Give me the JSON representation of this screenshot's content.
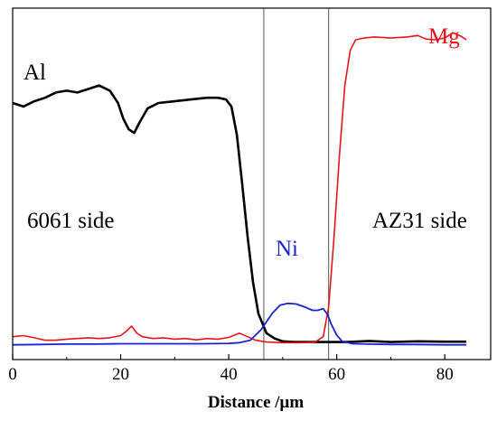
{
  "chart_data": {
    "type": "line",
    "xlabel": "Distance /μm",
    "ylabel": "",
    "xlim": [
      0,
      88.5
    ],
    "ylim": [
      0,
      1
    ],
    "x_ticks": [
      0,
      20,
      40,
      60,
      80
    ],
    "x_tick_labels": [
      "0",
      "20",
      "40",
      "60",
      "80"
    ],
    "y_ticks_shown": false,
    "grid": false,
    "legend": "none",
    "vlines": [
      46.5,
      58.5
    ],
    "annotations": [
      {
        "key": "al",
        "text": "Al",
        "color": "#000000"
      },
      {
        "key": "mg",
        "text": "Mg",
        "color": "#e8141a"
      },
      {
        "key": "ni",
        "text": "Ni",
        "color": "#1a23d4"
      },
      {
        "key": "left_side",
        "text": "6061 side",
        "color": "#000000"
      },
      {
        "key": "right_side",
        "text": "AZ31 side",
        "color": "#000000"
      }
    ],
    "series": [
      {
        "color": "#000000",
        "points": [
          [
            0,
            0.73
          ],
          [
            2,
            0.72
          ],
          [
            4,
            0.735
          ],
          [
            6,
            0.745
          ],
          [
            8,
            0.76
          ],
          [
            10,
            0.765
          ],
          [
            12,
            0.76
          ],
          [
            14,
            0.77
          ],
          [
            16,
            0.78
          ],
          [
            18,
            0.765
          ],
          [
            19.5,
            0.73
          ],
          [
            20.5,
            0.685
          ],
          [
            21.5,
            0.655
          ],
          [
            22.5,
            0.645
          ],
          [
            23.5,
            0.675
          ],
          [
            25,
            0.715
          ],
          [
            27,
            0.73
          ],
          [
            30,
            0.735
          ],
          [
            33,
            0.74
          ],
          [
            36,
            0.745
          ],
          [
            38,
            0.745
          ],
          [
            39.5,
            0.74
          ],
          [
            40.5,
            0.72
          ],
          [
            41.5,
            0.64
          ],
          [
            42.5,
            0.5
          ],
          [
            43.5,
            0.35
          ],
          [
            44.5,
            0.22
          ],
          [
            45.5,
            0.13
          ],
          [
            47,
            0.075
          ],
          [
            48.5,
            0.06
          ],
          [
            50,
            0.052
          ],
          [
            52,
            0.05
          ],
          [
            55,
            0.05
          ],
          [
            58,
            0.05
          ],
          [
            62,
            0.05
          ],
          [
            66,
            0.053
          ],
          [
            70,
            0.05
          ],
          [
            75,
            0.052
          ],
          [
            80,
            0.051
          ],
          [
            84,
            0.051
          ]
        ]
      },
      {
        "color": "#e8141a",
        "points": [
          [
            0,
            0.065
          ],
          [
            2,
            0.068
          ],
          [
            4,
            0.062
          ],
          [
            6,
            0.055
          ],
          [
            8,
            0.055
          ],
          [
            10,
            0.058
          ],
          [
            12,
            0.06
          ],
          [
            14,
            0.062
          ],
          [
            16,
            0.06
          ],
          [
            18,
            0.062
          ],
          [
            20,
            0.068
          ],
          [
            21,
            0.08
          ],
          [
            22,
            0.095
          ],
          [
            23,
            0.075
          ],
          [
            24,
            0.065
          ],
          [
            26,
            0.06
          ],
          [
            28,
            0.062
          ],
          [
            30,
            0.058
          ],
          [
            32,
            0.06
          ],
          [
            34,
            0.056
          ],
          [
            36,
            0.06
          ],
          [
            38,
            0.058
          ],
          [
            40,
            0.063
          ],
          [
            42,
            0.075
          ],
          [
            43.5,
            0.065
          ],
          [
            45,
            0.055
          ],
          [
            47,
            0.05
          ],
          [
            50,
            0.048
          ],
          [
            53,
            0.048
          ],
          [
            56,
            0.05
          ],
          [
            57.5,
            0.065
          ],
          [
            58.5,
            0.15
          ],
          [
            59.5,
            0.35
          ],
          [
            60.5,
            0.58
          ],
          [
            61.5,
            0.78
          ],
          [
            62.5,
            0.88
          ],
          [
            63.5,
            0.91
          ],
          [
            65,
            0.915
          ],
          [
            67,
            0.918
          ],
          [
            70,
            0.915
          ],
          [
            73,
            0.918
          ],
          [
            75,
            0.922
          ],
          [
            76.5,
            0.912
          ],
          [
            78,
            0.91
          ],
          [
            80,
            0.915
          ],
          [
            81.5,
            0.93
          ],
          [
            83,
            0.92
          ],
          [
            84,
            0.91
          ]
        ]
      },
      {
        "color": "#1a23d4",
        "points": [
          [
            0,
            0.042
          ],
          [
            5,
            0.043
          ],
          [
            10,
            0.044
          ],
          [
            15,
            0.044
          ],
          [
            20,
            0.045
          ],
          [
            25,
            0.045
          ],
          [
            30,
            0.045
          ],
          [
            35,
            0.045
          ],
          [
            40,
            0.046
          ],
          [
            42,
            0.048
          ],
          [
            44,
            0.055
          ],
          [
            46,
            0.085
          ],
          [
            48,
            0.13
          ],
          [
            49.5,
            0.155
          ],
          [
            51,
            0.16
          ],
          [
            52.5,
            0.158
          ],
          [
            54,
            0.15
          ],
          [
            55.5,
            0.14
          ],
          [
            56.5,
            0.14
          ],
          [
            57.5,
            0.145
          ],
          [
            58.3,
            0.128
          ],
          [
            59,
            0.1
          ],
          [
            60,
            0.07
          ],
          [
            61,
            0.052
          ],
          [
            63,
            0.045
          ],
          [
            66,
            0.044
          ],
          [
            70,
            0.043
          ],
          [
            75,
            0.043
          ],
          [
            80,
            0.042
          ],
          [
            84,
            0.042
          ]
        ]
      }
    ]
  }
}
